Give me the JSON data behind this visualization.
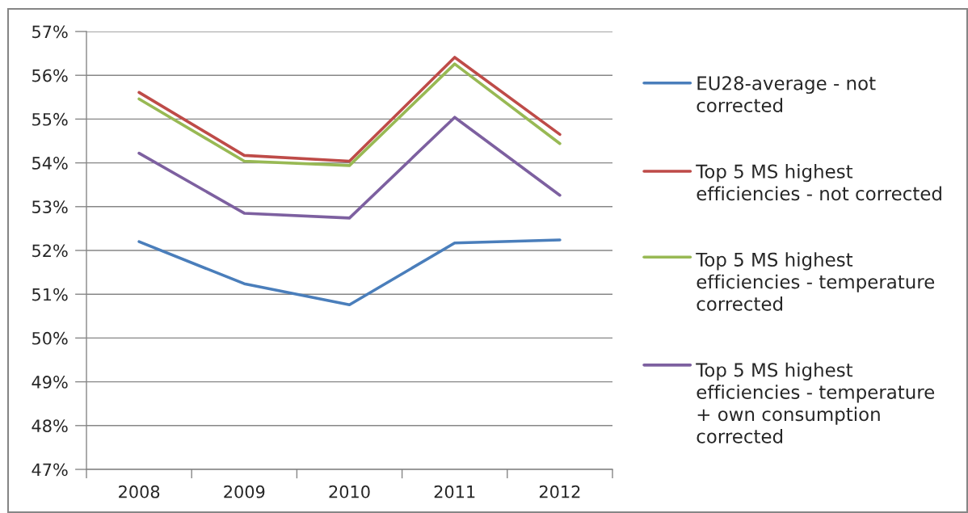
{
  "chart_data": {
    "type": "line",
    "categories": [
      "2008",
      "2009",
      "2010",
      "2011",
      "2012"
    ],
    "series": [
      {
        "name": "EU28-average - not corrected",
        "color": "#4a7ebb",
        "values": [
          52.2,
          51.24,
          50.76,
          52.17,
          52.24
        ]
      },
      {
        "name": "Top 5 MS highest efficiencies - not corrected",
        "color": "#be4b48",
        "values": [
          55.61,
          54.17,
          54.04,
          56.41,
          54.65
        ]
      },
      {
        "name": "Top 5 MS highest efficiencies - temperature corrected",
        "color": "#98b954",
        "values": [
          55.46,
          54.04,
          53.94,
          56.26,
          54.44
        ]
      },
      {
        "name": "Top 5 MS highest efficiencies - temperature + own consumption corrected",
        "color": "#7d60a0",
        "values": [
          54.22,
          52.85,
          52.74,
          55.04,
          53.26
        ]
      }
    ],
    "ylim": [
      47,
      57
    ],
    "yticks": [
      {
        "value": 47,
        "label": "47%"
      },
      {
        "value": 48,
        "label": "48%"
      },
      {
        "value": 49,
        "label": "49%"
      },
      {
        "value": 50,
        "label": "50%"
      },
      {
        "value": 51,
        "label": "51%"
      },
      {
        "value": 52,
        "label": "52%"
      },
      {
        "value": 53,
        "label": "53%"
      },
      {
        "value": 54,
        "label": "54%"
      },
      {
        "value": 55,
        "label": "55%"
      },
      {
        "value": 56,
        "label": "56%"
      },
      {
        "value": 57,
        "label": "57%"
      }
    ],
    "grid": "y",
    "legend": "right",
    "marker": "none",
    "line_style": "solid"
  }
}
